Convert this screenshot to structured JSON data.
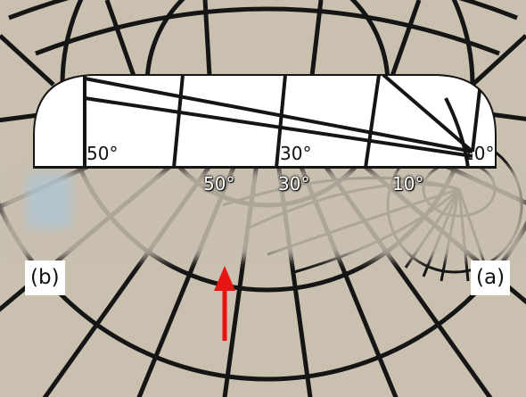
{
  "figure": {
    "upper_labels": [
      "50°",
      "30°",
      "10°"
    ],
    "lower_labels": [
      "50°",
      "30°",
      "10°"
    ],
    "panel_left": "(b)",
    "panel_right": "(a)"
  },
  "colors": {
    "background_paper": "#c9c0b0",
    "grid_line": "#151515",
    "chart_white": "#ffffff",
    "arrow": "#e81414",
    "blur_band": "#c8bfb0"
  },
  "icons": [
    "red-arrow-icon"
  ]
}
